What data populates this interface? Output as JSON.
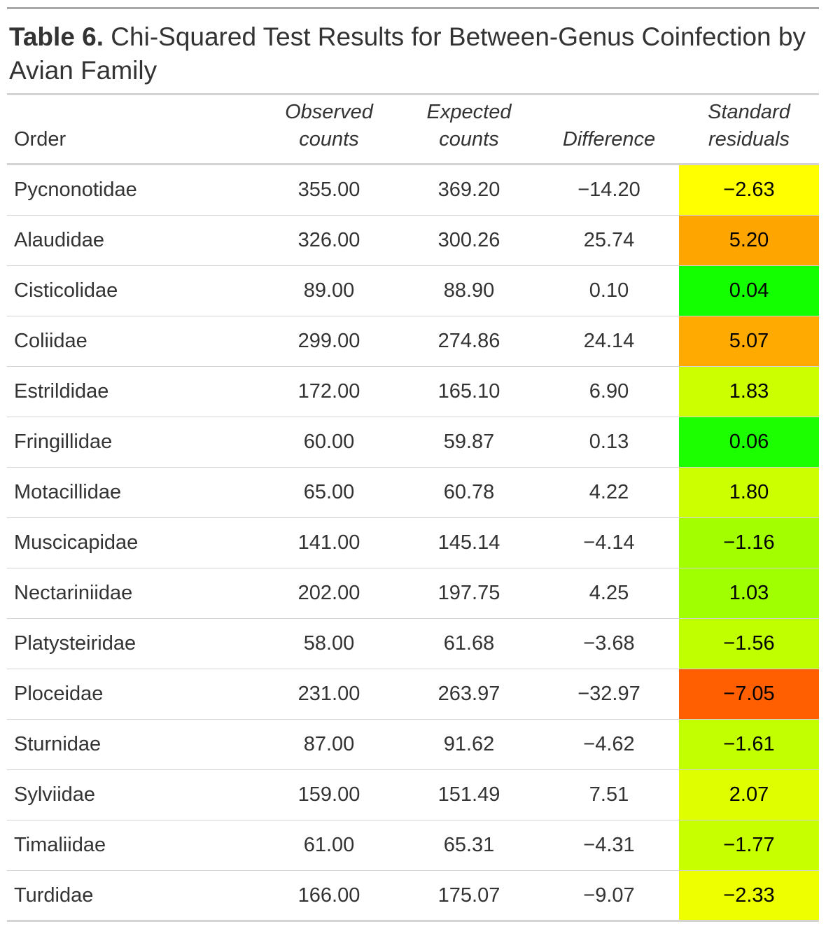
{
  "title": {
    "label": "Table 6.",
    "text": " Chi-Squared Test Results for Between-Genus Coinfection by Avian Family"
  },
  "columns": {
    "order": "Order",
    "observed": "Observed counts",
    "expected": "Expected counts",
    "difference": "Difference",
    "residuals": "Standard residuals"
  },
  "rows": [
    {
      "order": "Pycnonotidae",
      "observed": "355.00",
      "expected": "369.20",
      "difference": "−14.20",
      "residual": "−2.63",
      "color": "#FFFF00"
    },
    {
      "order": "Alaudidae",
      "observed": "326.00",
      "expected": "300.26",
      "difference": "25.74",
      "residual": "5.20",
      "color": "#FFA500"
    },
    {
      "order": "Cisticolidae",
      "observed": "89.00",
      "expected": "88.90",
      "difference": "0.10",
      "residual": "0.04",
      "color": "#13FF00"
    },
    {
      "order": "Coliidae",
      "observed": "299.00",
      "expected": "274.86",
      "difference": "24.14",
      "residual": "5.07",
      "color": "#FFAA00"
    },
    {
      "order": "Estrildidae",
      "observed": "172.00",
      "expected": "165.10",
      "difference": "6.90",
      "residual": "1.83",
      "color": "#CCFF00"
    },
    {
      "order": "Fringillidae",
      "observed": "60.00",
      "expected": "59.87",
      "difference": "0.13",
      "residual": "0.06",
      "color": "#1CFF00"
    },
    {
      "order": "Motacillidae",
      "observed": "65.00",
      "expected": "60.78",
      "difference": "4.22",
      "residual": "1.80",
      "color": "#CCFF00"
    },
    {
      "order": "Muscicapidae",
      "observed": "141.00",
      "expected": "145.14",
      "difference": "−4.14",
      "residual": "−1.16",
      "color": "#A3FF00"
    },
    {
      "order": "Nectariniidae",
      "observed": "202.00",
      "expected": "197.75",
      "difference": "4.25",
      "residual": "1.03",
      "color": "#A0FF00"
    },
    {
      "order": "Platysteiridae",
      "observed": "58.00",
      "expected": "61.68",
      "difference": "−3.68",
      "residual": "−1.56",
      "color": "#BFFF00"
    },
    {
      "order": "Ploceidae",
      "observed": "231.00",
      "expected": "263.97",
      "difference": "−32.97",
      "residual": "−7.05",
      "color": "#FF5F00"
    },
    {
      "order": "Sturnidae",
      "observed": "87.00",
      "expected": "91.62",
      "difference": "−4.62",
      "residual": "−1.61",
      "color": "#C2FF00"
    },
    {
      "order": "Sylviidae",
      "observed": "159.00",
      "expected": "151.49",
      "difference": "7.51",
      "residual": "2.07",
      "color": "#DFFF00"
    },
    {
      "order": "Timaliidae",
      "observed": "61.00",
      "expected": "65.31",
      "difference": "−4.31",
      "residual": "−1.77",
      "color": "#C8FF00"
    },
    {
      "order": "Turdidae",
      "observed": "166.00",
      "expected": "175.07",
      "difference": "−9.07",
      "residual": "−2.33",
      "color": "#EEFF00"
    }
  ]
}
